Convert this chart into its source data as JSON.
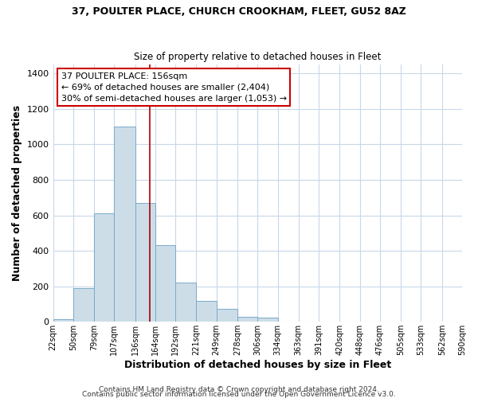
{
  "title": "37, POULTER PLACE, CHURCH CROOKHAM, FLEET, GU52 8AZ",
  "subtitle": "Size of property relative to detached houses in Fleet",
  "xlabel": "Distribution of detached houses by size in Fleet",
  "ylabel": "Number of detached properties",
  "bin_edges": [
    22,
    50,
    79,
    107,
    136,
    164,
    192,
    221,
    249,
    278,
    306,
    334,
    363,
    391,
    420,
    448,
    476,
    505,
    533,
    562,
    590
  ],
  "bin_counts": [
    15,
    190,
    610,
    1100,
    670,
    430,
    220,
    120,
    75,
    30,
    25,
    0,
    0,
    0,
    0,
    0,
    0,
    0,
    0,
    0
  ],
  "bar_color": "#ccdde8",
  "bar_edge_color": "#7aaac8",
  "vline_x": 156,
  "vline_color": "#aa0000",
  "annotation_line1": "37 POULTER PLACE: 156sqm",
  "annotation_line2": "← 69% of detached houses are smaller (2,404)",
  "annotation_line3": "30% of semi-detached houses are larger (1,053) →",
  "annotation_box_color": "#cc0000",
  "ylim": [
    0,
    1450
  ],
  "yticks": [
    0,
    200,
    400,
    600,
    800,
    1000,
    1200,
    1400
  ],
  "tick_labels": [
    "22sqm",
    "50sqm",
    "79sqm",
    "107sqm",
    "136sqm",
    "164sqm",
    "192sqm",
    "221sqm",
    "249sqm",
    "278sqm",
    "306sqm",
    "334sqm",
    "363sqm",
    "391sqm",
    "420sqm",
    "448sqm",
    "476sqm",
    "505sqm",
    "533sqm",
    "562sqm",
    "590sqm"
  ],
  "footer_line1": "Contains HM Land Registry data © Crown copyright and database right 2024.",
  "footer_line2": "Contains public sector information licensed under the Open Government Licence v3.0.",
  "background_color": "#ffffff",
  "grid_color": "#c8d8e8",
  "title_fontsize": 9,
  "subtitle_fontsize": 8.5,
  "xlabel_fontsize": 9,
  "ylabel_fontsize": 9,
  "annotation_fontsize": 8,
  "footer_fontsize": 6.5,
  "tick_fontsize": 7
}
